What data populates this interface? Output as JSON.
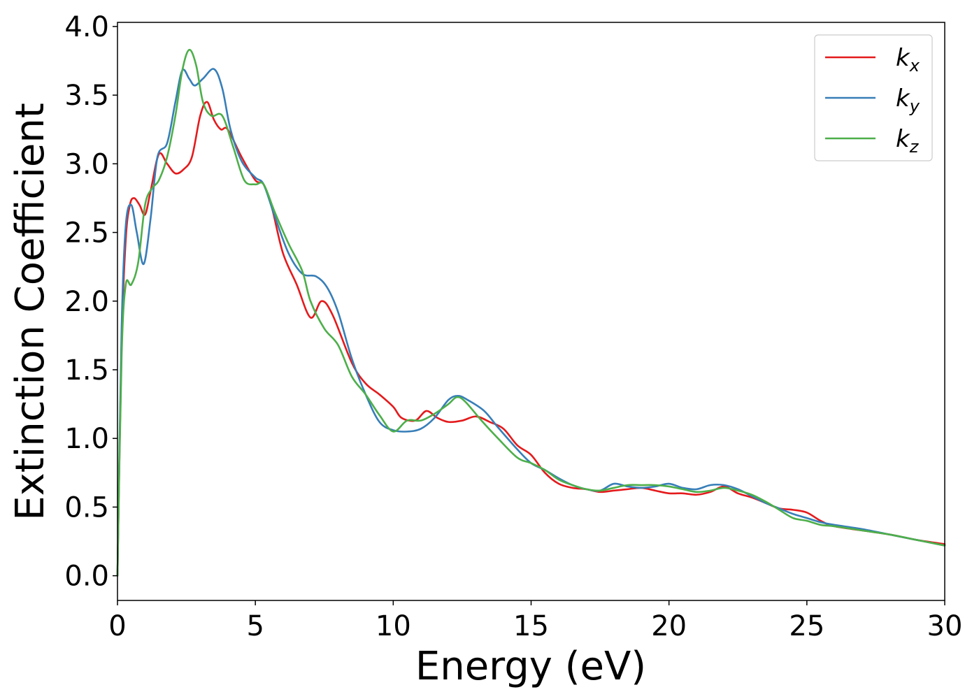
{
  "chart_data": {
    "type": "line",
    "title": "",
    "xlabel": "Energy (eV)",
    "ylabel": "Extinction Coefficient",
    "xlim": [
      0,
      30
    ],
    "ylim": [
      -0.18,
      4.03
    ],
    "xticks": [
      0,
      5,
      10,
      15,
      20,
      25,
      30
    ],
    "yticks": [
      0.0,
      0.5,
      1.0,
      1.5,
      2.0,
      2.5,
      3.0,
      3.5,
      4.0
    ],
    "xtick_labels": [
      "0",
      "5",
      "10",
      "15",
      "20",
      "25",
      "30"
    ],
    "ytick_labels": [
      "0.0",
      "0.5",
      "1.0",
      "1.5",
      "2.0",
      "2.5",
      "3.0",
      "3.5",
      "4.0"
    ],
    "grid": false,
    "legend_position": "top-right",
    "series": [
      {
        "name": "k_x",
        "legend_base": "k",
        "legend_sub": "x",
        "color": "#e41a1c",
        "points": [
          [
            0,
            0
          ],
          [
            0.15,
            1.7
          ],
          [
            0.3,
            2.45
          ],
          [
            0.45,
            2.7
          ],
          [
            0.6,
            2.75
          ],
          [
            0.8,
            2.7
          ],
          [
            1.0,
            2.63
          ],
          [
            1.2,
            2.8
          ],
          [
            1.5,
            3.07
          ],
          [
            1.8,
            3.0
          ],
          [
            2.1,
            2.93
          ],
          [
            2.4,
            2.96
          ],
          [
            2.7,
            3.05
          ],
          [
            3.0,
            3.35
          ],
          [
            3.25,
            3.45
          ],
          [
            3.5,
            3.32
          ],
          [
            3.75,
            3.25
          ],
          [
            4.0,
            3.25
          ],
          [
            4.5,
            3.05
          ],
          [
            5.0,
            2.88
          ],
          [
            5.3,
            2.85
          ],
          [
            5.6,
            2.68
          ],
          [
            6.0,
            2.35
          ],
          [
            6.5,
            2.12
          ],
          [
            7.0,
            1.88
          ],
          [
            7.4,
            2.0
          ],
          [
            7.8,
            1.9
          ],
          [
            8.5,
            1.55
          ],
          [
            9.0,
            1.4
          ],
          [
            9.5,
            1.32
          ],
          [
            10.0,
            1.23
          ],
          [
            10.3,
            1.15
          ],
          [
            10.8,
            1.13
          ],
          [
            11.2,
            1.2
          ],
          [
            11.6,
            1.15
          ],
          [
            12.0,
            1.12
          ],
          [
            12.5,
            1.13
          ],
          [
            13.0,
            1.16
          ],
          [
            13.5,
            1.12
          ],
          [
            14.0,
            1.07
          ],
          [
            14.5,
            0.95
          ],
          [
            15.0,
            0.88
          ],
          [
            15.5,
            0.75
          ],
          [
            16.0,
            0.67
          ],
          [
            16.5,
            0.64
          ],
          [
            17.0,
            0.63
          ],
          [
            17.5,
            0.61
          ],
          [
            18.0,
            0.62
          ],
          [
            18.5,
            0.63
          ],
          [
            19.0,
            0.64
          ],
          [
            19.5,
            0.62
          ],
          [
            20.0,
            0.6
          ],
          [
            20.5,
            0.6
          ],
          [
            21.0,
            0.59
          ],
          [
            21.5,
            0.61
          ],
          [
            22.0,
            0.65
          ],
          [
            22.5,
            0.6
          ],
          [
            23.0,
            0.57
          ],
          [
            23.5,
            0.53
          ],
          [
            24.0,
            0.49
          ],
          [
            24.5,
            0.48
          ],
          [
            25.0,
            0.46
          ],
          [
            25.5,
            0.4
          ],
          [
            26.0,
            0.36
          ],
          [
            27.0,
            0.33
          ],
          [
            28.0,
            0.3
          ],
          [
            29.0,
            0.26
          ],
          [
            30.0,
            0.23
          ]
        ]
      },
      {
        "name": "k_y",
        "legend_base": "k",
        "legend_sub": "y",
        "color": "#377eb8",
        "points": [
          [
            0,
            0
          ],
          [
            0.15,
            1.8
          ],
          [
            0.3,
            2.55
          ],
          [
            0.5,
            2.7
          ],
          [
            0.7,
            2.5
          ],
          [
            0.95,
            2.27
          ],
          [
            1.2,
            2.6
          ],
          [
            1.45,
            3.05
          ],
          [
            1.8,
            3.15
          ],
          [
            2.1,
            3.45
          ],
          [
            2.35,
            3.68
          ],
          [
            2.6,
            3.62
          ],
          [
            2.8,
            3.57
          ],
          [
            3.1,
            3.62
          ],
          [
            3.5,
            3.69
          ],
          [
            3.8,
            3.55
          ],
          [
            4.1,
            3.25
          ],
          [
            4.5,
            3.02
          ],
          [
            5.0,
            2.9
          ],
          [
            5.3,
            2.85
          ],
          [
            5.7,
            2.62
          ],
          [
            6.2,
            2.35
          ],
          [
            6.7,
            2.2
          ],
          [
            7.2,
            2.18
          ],
          [
            7.6,
            2.1
          ],
          [
            8.0,
            1.92
          ],
          [
            8.5,
            1.58
          ],
          [
            9.0,
            1.32
          ],
          [
            9.5,
            1.12
          ],
          [
            10.0,
            1.06
          ],
          [
            10.5,
            1.05
          ],
          [
            11.0,
            1.07
          ],
          [
            11.5,
            1.15
          ],
          [
            12.0,
            1.28
          ],
          [
            12.35,
            1.31
          ],
          [
            12.7,
            1.28
          ],
          [
            13.3,
            1.2
          ],
          [
            13.8,
            1.08
          ],
          [
            14.5,
            0.92
          ],
          [
            15.0,
            0.82
          ],
          [
            15.5,
            0.77
          ],
          [
            16.0,
            0.71
          ],
          [
            16.5,
            0.66
          ],
          [
            17.0,
            0.63
          ],
          [
            17.5,
            0.62
          ],
          [
            18.0,
            0.67
          ],
          [
            18.5,
            0.65
          ],
          [
            19.0,
            0.64
          ],
          [
            19.5,
            0.65
          ],
          [
            20.0,
            0.67
          ],
          [
            20.5,
            0.64
          ],
          [
            21.0,
            0.63
          ],
          [
            21.5,
            0.66
          ],
          [
            22.0,
            0.66
          ],
          [
            22.5,
            0.63
          ],
          [
            23.0,
            0.58
          ],
          [
            23.5,
            0.53
          ],
          [
            24.0,
            0.49
          ],
          [
            24.5,
            0.45
          ],
          [
            25.0,
            0.42
          ],
          [
            25.5,
            0.39
          ],
          [
            26.0,
            0.37
          ],
          [
            27.0,
            0.34
          ],
          [
            28.0,
            0.3
          ],
          [
            29.0,
            0.26
          ],
          [
            30.0,
            0.22
          ]
        ]
      },
      {
        "name": "k_z",
        "legend_base": "k",
        "legend_sub": "z",
        "color": "#4daf4a",
        "points": [
          [
            0,
            0
          ],
          [
            0.15,
            1.6
          ],
          [
            0.3,
            2.12
          ],
          [
            0.5,
            2.12
          ],
          [
            0.75,
            2.28
          ],
          [
            1.0,
            2.7
          ],
          [
            1.25,
            2.82
          ],
          [
            1.5,
            2.88
          ],
          [
            1.8,
            3.05
          ],
          [
            2.1,
            3.35
          ],
          [
            2.35,
            3.68
          ],
          [
            2.6,
            3.83
          ],
          [
            2.85,
            3.72
          ],
          [
            3.1,
            3.45
          ],
          [
            3.4,
            3.35
          ],
          [
            3.8,
            3.35
          ],
          [
            4.2,
            3.12
          ],
          [
            4.6,
            2.88
          ],
          [
            5.0,
            2.85
          ],
          [
            5.3,
            2.85
          ],
          [
            5.7,
            2.65
          ],
          [
            6.2,
            2.42
          ],
          [
            6.7,
            2.22
          ],
          [
            7.0,
            2.0
          ],
          [
            7.5,
            1.8
          ],
          [
            8.0,
            1.68
          ],
          [
            8.5,
            1.45
          ],
          [
            9.0,
            1.32
          ],
          [
            9.5,
            1.17
          ],
          [
            10.0,
            1.05
          ],
          [
            10.5,
            1.13
          ],
          [
            11.0,
            1.13
          ],
          [
            11.5,
            1.18
          ],
          [
            12.0,
            1.25
          ],
          [
            12.3,
            1.3
          ],
          [
            12.6,
            1.27
          ],
          [
            13.2,
            1.13
          ],
          [
            13.8,
            1.0
          ],
          [
            14.5,
            0.86
          ],
          [
            15.0,
            0.82
          ],
          [
            15.5,
            0.77
          ],
          [
            16.0,
            0.7
          ],
          [
            16.5,
            0.66
          ],
          [
            17.0,
            0.63
          ],
          [
            17.5,
            0.62
          ],
          [
            18.0,
            0.64
          ],
          [
            18.5,
            0.66
          ],
          [
            19.0,
            0.66
          ],
          [
            19.5,
            0.66
          ],
          [
            20.0,
            0.65
          ],
          [
            20.5,
            0.63
          ],
          [
            21.0,
            0.61
          ],
          [
            21.5,
            0.62
          ],
          [
            22.0,
            0.64
          ],
          [
            22.5,
            0.62
          ],
          [
            23.0,
            0.59
          ],
          [
            23.5,
            0.54
          ],
          [
            24.0,
            0.48
          ],
          [
            24.5,
            0.42
          ],
          [
            25.0,
            0.4
          ],
          [
            25.5,
            0.37
          ],
          [
            26.0,
            0.36
          ],
          [
            27.0,
            0.33
          ],
          [
            28.0,
            0.3
          ],
          [
            29.0,
            0.26
          ],
          [
            30.0,
            0.22
          ]
        ]
      }
    ]
  }
}
